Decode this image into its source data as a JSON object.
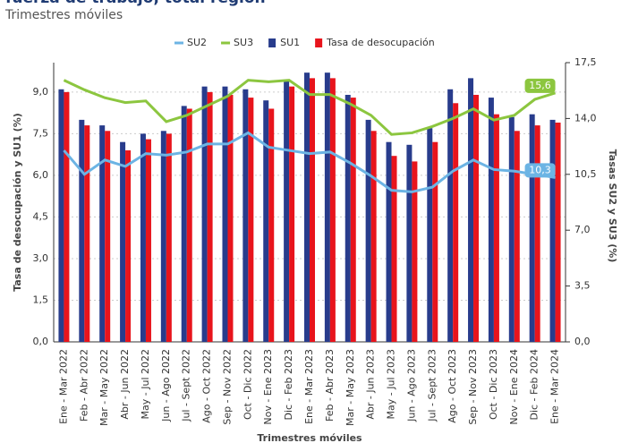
{
  "chart_data": {
    "type": "bar_line",
    "title": "fuerza de trabajo, total región",
    "subtitle": "Trimestres móviles",
    "x_label": "Trimestres móviles",
    "y_label": "Tasa de desocupación y SU1 (%)",
    "y2_label": "Tasas SU2 y SU3 (%)",
    "categories": [
      "Ene - Mar 2022",
      "Feb - Abr 2022",
      "Mar - May 2022",
      "Abr - Jun 2022",
      "May - Jul 2022",
      "Jun - Ago 2022",
      "Jul - Sept 2022",
      "Ago - Oct 2022",
      "Sep - Nov 2022",
      "Oct - Dic 2022",
      "Nov - Ene 2023",
      "Dic - Feb 2023",
      "Ene - Mar 2023",
      "Feb - Abr 2023",
      "Mar - May 2023",
      "Abr - Jun 2023",
      "May - Jul 2023",
      "Jun - Ago 2023",
      "Jul - Sept 2023",
      "Ago - Oct 2023",
      "Sep - Nov 2023",
      "Oct - Dic 2023",
      "Nov - Ene 2024",
      "Dic - Feb 2024",
      "Ene - Mar 2024"
    ],
    "series": [
      {
        "name": "SU2",
        "kind": "line",
        "axis": "y2",
        "color": "#6cb4e4",
        "values": [
          12.0,
          10.5,
          11.4,
          11.0,
          11.8,
          11.7,
          11.9,
          12.4,
          12.4,
          13.1,
          12.2,
          12.0,
          11.8,
          11.9,
          11.2,
          10.4,
          9.5,
          9.4,
          9.7,
          10.7,
          11.4,
          10.8,
          10.7,
          10.5,
          10.3
        ],
        "value_labels": [
          null,
          null,
          null,
          null,
          null,
          null,
          null,
          null,
          null,
          null,
          null,
          null,
          null,
          null,
          null,
          null,
          null,
          null,
          null,
          null,
          null,
          null,
          null,
          null,
          "10,3"
        ]
      },
      {
        "name": "SU3",
        "kind": "line",
        "axis": "y2",
        "color": "#8cc63f",
        "values": [
          16.4,
          15.8,
          15.3,
          15.0,
          15.1,
          13.8,
          14.2,
          14.8,
          15.4,
          16.4,
          16.3,
          16.4,
          15.5,
          15.5,
          14.9,
          14.2,
          13.0,
          13.1,
          13.5,
          14.0,
          14.6,
          13.9,
          14.2,
          15.2,
          15.6
        ],
        "value_labels": [
          null,
          null,
          null,
          null,
          null,
          null,
          null,
          null,
          null,
          null,
          null,
          null,
          null,
          null,
          null,
          null,
          null,
          null,
          null,
          null,
          null,
          null,
          null,
          null,
          "15,6"
        ]
      },
      {
        "name": "SU1",
        "kind": "bar",
        "color": "#283c8c",
        "values": [
          9.1,
          8.0,
          7.8,
          7.2,
          7.5,
          7.6,
          8.5,
          9.2,
          9.2,
          9.1,
          8.7,
          9.4,
          9.7,
          9.7,
          8.9,
          8.0,
          7.2,
          7.1,
          7.7,
          9.1,
          9.5,
          8.8,
          8.1,
          8.2,
          8.0
        ]
      },
      {
        "name": "Tasa de desocupación",
        "kind": "bar",
        "color": "#e8141c",
        "values": [
          9.0,
          7.8,
          7.6,
          6.9,
          7.3,
          7.5,
          8.4,
          9.0,
          8.9,
          8.8,
          8.4,
          9.2,
          9.5,
          9.5,
          8.8,
          7.6,
          6.7,
          6.5,
          7.2,
          8.6,
          8.9,
          8.2,
          7.6,
          7.8,
          7.9
        ]
      }
    ],
    "ylim": [
      0,
      10.06
    ],
    "yticks": [
      {
        "value": 0,
        "label": "0,0"
      },
      {
        "value": 1.5,
        "label": "1,5"
      },
      {
        "value": 3,
        "label": "3,0"
      },
      {
        "value": 4.5,
        "label": "4,5"
      },
      {
        "value": 6,
        "label": "6,0"
      },
      {
        "value": 7.5,
        "label": "7,5"
      },
      {
        "value": 9,
        "label": "9,0"
      }
    ],
    "y2lim": [
      0,
      17.5
    ],
    "y2ticks": [
      {
        "value": 0,
        "label": "0,0"
      },
      {
        "value": 3.5,
        "label": "3,5"
      },
      {
        "value": 7,
        "label": "7,0"
      },
      {
        "value": 10.5,
        "label": "10,5"
      },
      {
        "value": 14,
        "label": "14,0"
      },
      {
        "value": 17.5,
        "label": "17,5"
      }
    ],
    "grid": true
  }
}
